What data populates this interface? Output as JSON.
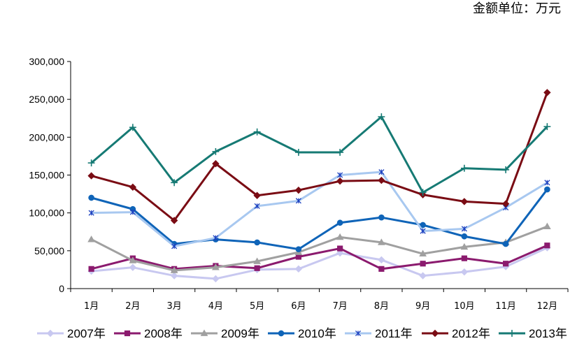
{
  "unit_label": "金额单位：万元",
  "chart_data": {
    "type": "line",
    "categories": [
      "1月",
      "2月",
      "3月",
      "4月",
      "5月",
      "6月",
      "7月",
      "8月",
      "9月",
      "10月",
      "11月",
      "12月"
    ],
    "ylim": [
      0,
      300000
    ],
    "yticks": [
      0,
      50000,
      100000,
      150000,
      200000,
      250000,
      300000
    ],
    "ytick_labels": [
      "0",
      "50,000",
      "100,000",
      "150,000",
      "200,000",
      "250,000",
      "300,000"
    ],
    "grid": false,
    "legend_position": "bottom",
    "series": [
      {
        "name": "2007年",
        "color": "#c8c8f0",
        "marker": "diamond",
        "values": [
          23000,
          28000,
          17000,
          13000,
          25000,
          26000,
          47000,
          38000,
          17000,
          22000,
          29000,
          54000
        ]
      },
      {
        "name": "2008年",
        "color": "#8b1a6e",
        "marker": "square",
        "values": [
          26000,
          40000,
          26000,
          30000,
          27000,
          42000,
          53000,
          26000,
          33000,
          40000,
          33000,
          57000
        ]
      },
      {
        "name": "2009年",
        "color": "#a0a0a0",
        "marker": "triangle",
        "values": [
          65000,
          37000,
          24000,
          28000,
          36000,
          48000,
          68000,
          61000,
          46000,
          55000,
          61000,
          82000
        ]
      },
      {
        "name": "2010年",
        "color": "#0f64b8",
        "marker": "circle",
        "values": [
          120000,
          105000,
          59000,
          65000,
          61000,
          52000,
          87000,
          94000,
          84000,
          69000,
          59000,
          131000
        ]
      },
      {
        "name": "2011年",
        "color": "#a8c8f0",
        "marker": "star",
        "values": [
          100000,
          101000,
          56000,
          67000,
          109000,
          116000,
          150000,
          154000,
          76000,
          79000,
          107000,
          140000
        ]
      },
      {
        "name": "2012年",
        "color": "#7a0c14",
        "marker": "diamond",
        "values": [
          149000,
          134000,
          90000,
          165000,
          123000,
          130000,
          142000,
          143000,
          124000,
          115000,
          112000,
          259000
        ]
      },
      {
        "name": "2013年",
        "color": "#167a74",
        "marker": "plus",
        "values": [
          166000,
          213000,
          140000,
          181000,
          207000,
          180000,
          180000,
          227000,
          127000,
          159000,
          157000,
          214000
        ]
      }
    ]
  }
}
